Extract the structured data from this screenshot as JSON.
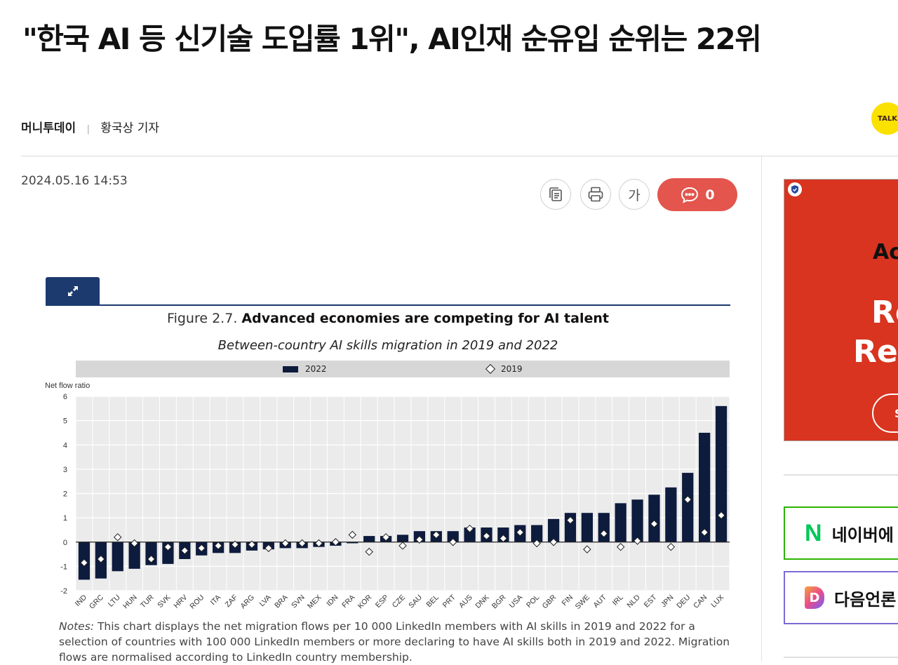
{
  "article": {
    "headline": "\"한국 AI 등 신기술 도입률 1위\", AI인재 순유입 순위는 22위",
    "press": "머니투데이",
    "separator": "|",
    "reporter": "황국상 기자",
    "datetime": "2024.05.16 14:53"
  },
  "kakao": {
    "label": "TALK"
  },
  "toolbar": {
    "copy_icon": "copy-icon",
    "print_icon": "print-icon",
    "font_label": "가",
    "comment_count": "0",
    "comment_color": "#e3554d"
  },
  "figure": {
    "expand_icon": "expand-icon",
    "title_prefix": "Figure 2.7.",
    "title_main": "Advanced economies are competing for AI talent",
    "subtitle": "Between-country AI skills migration in 2019 and 2022",
    "notes_label": "Notes:",
    "notes_text": "This chart displays the net migration flows per 10 000 LinkedIn members with AI skills in 2019 and 2022 for a selection of countries with 100 000 LinkedIn members or more declaring to have AI skills both in 2019 and 2022. Migration flows are normalised according to LinkedIn country membership.",
    "accent_color": "#1c3a6e"
  },
  "chart_data": {
    "type": "bar",
    "ylabel": "Net flow ratio",
    "ylim": [
      -2,
      6
    ],
    "yticks": [
      -2,
      -1,
      0,
      1,
      2,
      3,
      4,
      5,
      6
    ],
    "grid": true,
    "legend_position": "top",
    "categories": [
      "IND",
      "GRC",
      "LTU",
      "HUN",
      "TUR",
      "SVK",
      "HRV",
      "ROU",
      "ITA",
      "ZAF",
      "ARG",
      "LVA",
      "BRA",
      "SVN",
      "MEX",
      "IDN",
      "FRA",
      "KOR",
      "ESP",
      "CZE",
      "SAU",
      "BEL",
      "PRT",
      "AUS",
      "DNK",
      "BGR",
      "USA",
      "POL",
      "GBR",
      "FIN",
      "SWE",
      "AUT",
      "IRL",
      "NLD",
      "EST",
      "JPN",
      "DEU",
      "CAN",
      "LUX"
    ],
    "series": [
      {
        "name": "2022",
        "marker": "bar",
        "color": "#0d1b3d",
        "values": [
          -1.55,
          -1.5,
          -1.2,
          -1.1,
          -0.95,
          -0.9,
          -0.7,
          -0.55,
          -0.45,
          -0.45,
          -0.35,
          -0.3,
          -0.25,
          -0.25,
          -0.2,
          -0.15,
          -0.05,
          0.25,
          0.25,
          0.3,
          0.45,
          0.45,
          0.45,
          0.6,
          0.6,
          0.6,
          0.7,
          0.7,
          0.95,
          1.2,
          1.2,
          1.2,
          1.6,
          1.75,
          1.95,
          2.25,
          2.85,
          4.5,
          5.6
        ]
      },
      {
        "name": "2019",
        "marker": "diamond",
        "color": "#ffffff",
        "values": [
          -0.85,
          -0.7,
          0.2,
          -0.05,
          -0.7,
          -0.2,
          -0.35,
          -0.25,
          -0.15,
          -0.1,
          -0.1,
          -0.25,
          -0.05,
          -0.05,
          -0.05,
          0.0,
          0.3,
          -0.4,
          0.2,
          -0.15,
          0.1,
          0.3,
          0.0,
          0.55,
          0.25,
          0.15,
          0.4,
          -0.05,
          0.0,
          0.9,
          -0.3,
          0.35,
          -0.2,
          0.05,
          0.75,
          -0.2,
          1.75,
          0.4,
          1.1
        ]
      }
    ]
  },
  "ad": {
    "badge_icon": "shield-icon",
    "line1": "Ac",
    "line2": "Re",
    "line3": "Rec",
    "cta": "S",
    "background": "#d8341f"
  },
  "subscribe": {
    "naver_logo": "N",
    "naver_label": "네이버에",
    "daum_logo": "D",
    "daum_label": "다음언론"
  }
}
